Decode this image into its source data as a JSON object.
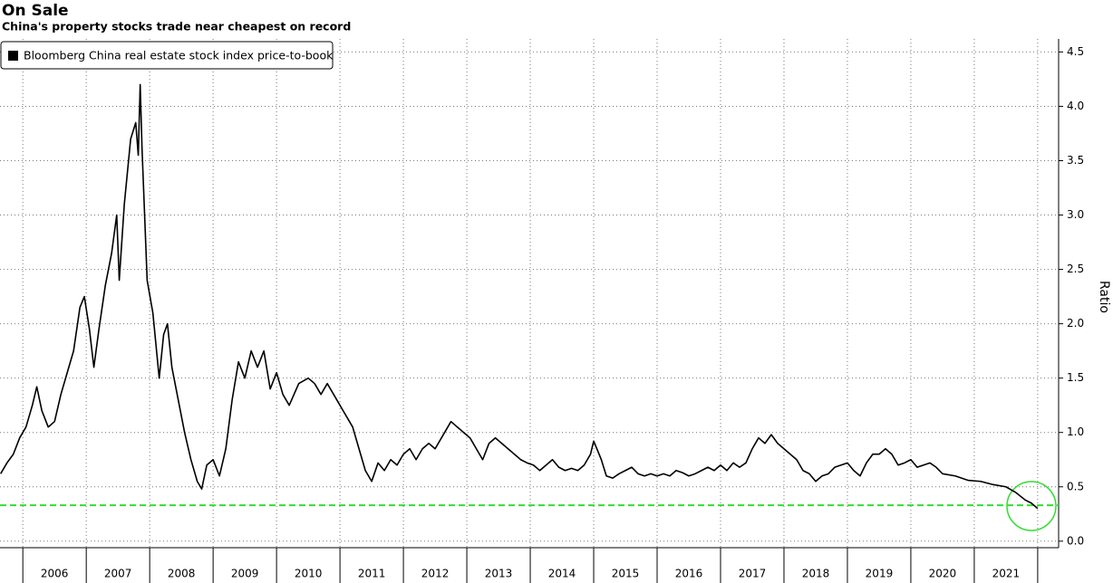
{
  "chart_data": {
    "type": "line",
    "title": "On Sale",
    "subtitle": "China's property stocks trade near cheapest on record",
    "y_label": "Ratio",
    "grid": true,
    "legend": "top-left",
    "xlim": [
      2005.64,
      2022.33
    ],
    "xticks": [
      2006,
      2007,
      2008,
      2009,
      2010,
      2011,
      2012,
      2013,
      2014,
      2015,
      2016,
      2017,
      2018,
      2019,
      2020,
      2021,
      2022
    ],
    "x_labels": [
      {
        "value": 2006.5,
        "label": "2006"
      },
      {
        "value": 2007.5,
        "label": "2007"
      },
      {
        "value": 2008.5,
        "label": "2008"
      },
      {
        "value": 2009.5,
        "label": "2009"
      },
      {
        "value": 2010.5,
        "label": "2010"
      },
      {
        "value": 2011.5,
        "label": "2011"
      },
      {
        "value": 2012.5,
        "label": "2012"
      },
      {
        "value": 2013.5,
        "label": "2013"
      },
      {
        "value": 2014.5,
        "label": "2014"
      },
      {
        "value": 2015.5,
        "label": "2015"
      },
      {
        "value": 2016.5,
        "label": "2016"
      },
      {
        "value": 2017.5,
        "label": "2017"
      },
      {
        "value": 2018.5,
        "label": "2018"
      },
      {
        "value": 2019.5,
        "label": "2019"
      },
      {
        "value": 2020.5,
        "label": "2020"
      },
      {
        "value": 2021.5,
        "label": "2021"
      }
    ],
    "ylim": [
      -0.06,
      4.62
    ],
    "yticks": [
      {
        "value": 0,
        "label": "0.0"
      },
      0.5,
      {
        "value": 1,
        "label": "1.0"
      },
      1.5,
      {
        "value": 2,
        "label": "2.0"
      },
      2.5,
      {
        "value": 3,
        "label": "3.0"
      },
      3.5,
      {
        "value": 4,
        "label": "4.0"
      },
      4.5
    ],
    "reference_line": {
      "value": 0.33,
      "color": "#33dd33"
    },
    "series": [
      {
        "name": "Bloomberg China real estate stock index price-to-book",
        "color": "#000000",
        "x": [
          2005.65,
          2005.75,
          2005.85,
          2005.95,
          2006.05,
          2006.15,
          2006.22,
          2006.3,
          2006.4,
          2006.5,
          2006.6,
          2006.7,
          2006.8,
          2006.9,
          2006.97,
          2007.05,
          2007.12,
          2007.2,
          2007.3,
          2007.4,
          2007.48,
          2007.52,
          2007.6,
          2007.7,
          2007.78,
          2007.82,
          2007.85,
          2007.88,
          2007.92,
          2007.96,
          2008.05,
          2008.1,
          2008.15,
          2008.22,
          2008.28,
          2008.35,
          2008.45,
          2008.55,
          2008.65,
          2008.75,
          2008.82,
          2008.9,
          2009.0,
          2009.1,
          2009.2,
          2009.3,
          2009.4,
          2009.5,
          2009.6,
          2009.7,
          2009.8,
          2009.9,
          2010.0,
          2010.1,
          2010.2,
          2010.35,
          2010.5,
          2010.6,
          2010.7,
          2010.8,
          2010.9,
          2011.0,
          2011.1,
          2011.2,
          2011.3,
          2011.4,
          2011.5,
          2011.6,
          2011.7,
          2011.8,
          2011.9,
          2012.0,
          2012.1,
          2012.2,
          2012.3,
          2012.4,
          2012.5,
          2012.6,
          2012.75,
          2012.85,
          2012.95,
          2013.05,
          2013.15,
          2013.25,
          2013.35,
          2013.45,
          2013.55,
          2013.65,
          2013.75,
          2013.85,
          2013.95,
          2014.05,
          2014.15,
          2014.25,
          2014.35,
          2014.45,
          2014.55,
          2014.65,
          2014.75,
          2014.85,
          2014.95,
          2015.0,
          2015.05,
          2015.12,
          2015.2,
          2015.3,
          2015.4,
          2015.5,
          2015.6,
          2015.7,
          2015.8,
          2015.9,
          2016.0,
          2016.1,
          2016.2,
          2016.3,
          2016.4,
          2016.5,
          2016.6,
          2016.7,
          2016.8,
          2016.9,
          2017.0,
          2017.1,
          2017.2,
          2017.3,
          2017.4,
          2017.5,
          2017.6,
          2017.7,
          2017.8,
          2017.9,
          2018.0,
          2018.1,
          2018.2,
          2018.3,
          2018.4,
          2018.5,
          2018.6,
          2018.7,
          2018.8,
          2018.9,
          2019.0,
          2019.1,
          2019.2,
          2019.3,
          2019.4,
          2019.5,
          2019.6,
          2019.7,
          2019.8,
          2019.9,
          2020.0,
          2020.1,
          2020.2,
          2020.3,
          2020.4,
          2020.5,
          2020.7,
          2020.9,
          2021.1,
          2021.3,
          2021.5,
          2021.65,
          2021.8,
          2021.9,
          2022.0
        ],
        "values": [
          0.62,
          0.72,
          0.8,
          0.95,
          1.05,
          1.25,
          1.42,
          1.2,
          1.05,
          1.1,
          1.35,
          1.55,
          1.75,
          2.15,
          2.25,
          1.95,
          1.6,
          1.95,
          2.35,
          2.65,
          3.0,
          2.4,
          3.1,
          3.7,
          3.85,
          3.55,
          4.2,
          3.6,
          3.0,
          2.4,
          2.1,
          1.8,
          1.5,
          1.9,
          2.0,
          1.6,
          1.3,
          1.0,
          0.75,
          0.55,
          0.48,
          0.7,
          0.75,
          0.6,
          0.85,
          1.3,
          1.65,
          1.5,
          1.75,
          1.6,
          1.75,
          1.4,
          1.55,
          1.35,
          1.25,
          1.45,
          1.5,
          1.45,
          1.35,
          1.45,
          1.35,
          1.25,
          1.15,
          1.05,
          0.85,
          0.65,
          0.55,
          0.72,
          0.65,
          0.75,
          0.7,
          0.8,
          0.85,
          0.75,
          0.85,
          0.9,
          0.85,
          0.95,
          1.1,
          1.05,
          1.0,
          0.95,
          0.85,
          0.75,
          0.9,
          0.95,
          0.9,
          0.85,
          0.8,
          0.75,
          0.72,
          0.7,
          0.65,
          0.7,
          0.75,
          0.68,
          0.65,
          0.67,
          0.65,
          0.7,
          0.8,
          0.92,
          0.85,
          0.75,
          0.6,
          0.58,
          0.62,
          0.65,
          0.68,
          0.62,
          0.6,
          0.62,
          0.6,
          0.62,
          0.6,
          0.65,
          0.63,
          0.6,
          0.62,
          0.65,
          0.68,
          0.65,
          0.7,
          0.65,
          0.72,
          0.68,
          0.72,
          0.85,
          0.95,
          0.9,
          0.98,
          0.9,
          0.85,
          0.8,
          0.75,
          0.65,
          0.62,
          0.55,
          0.6,
          0.62,
          0.68,
          0.7,
          0.72,
          0.65,
          0.6,
          0.72,
          0.8,
          0.8,
          0.85,
          0.8,
          0.7,
          0.72,
          0.75,
          0.68,
          0.7,
          0.72,
          0.68,
          0.62,
          0.6,
          0.56,
          0.55,
          0.52,
          0.5,
          0.45,
          0.38,
          0.35,
          0.3
        ]
      }
    ]
  }
}
